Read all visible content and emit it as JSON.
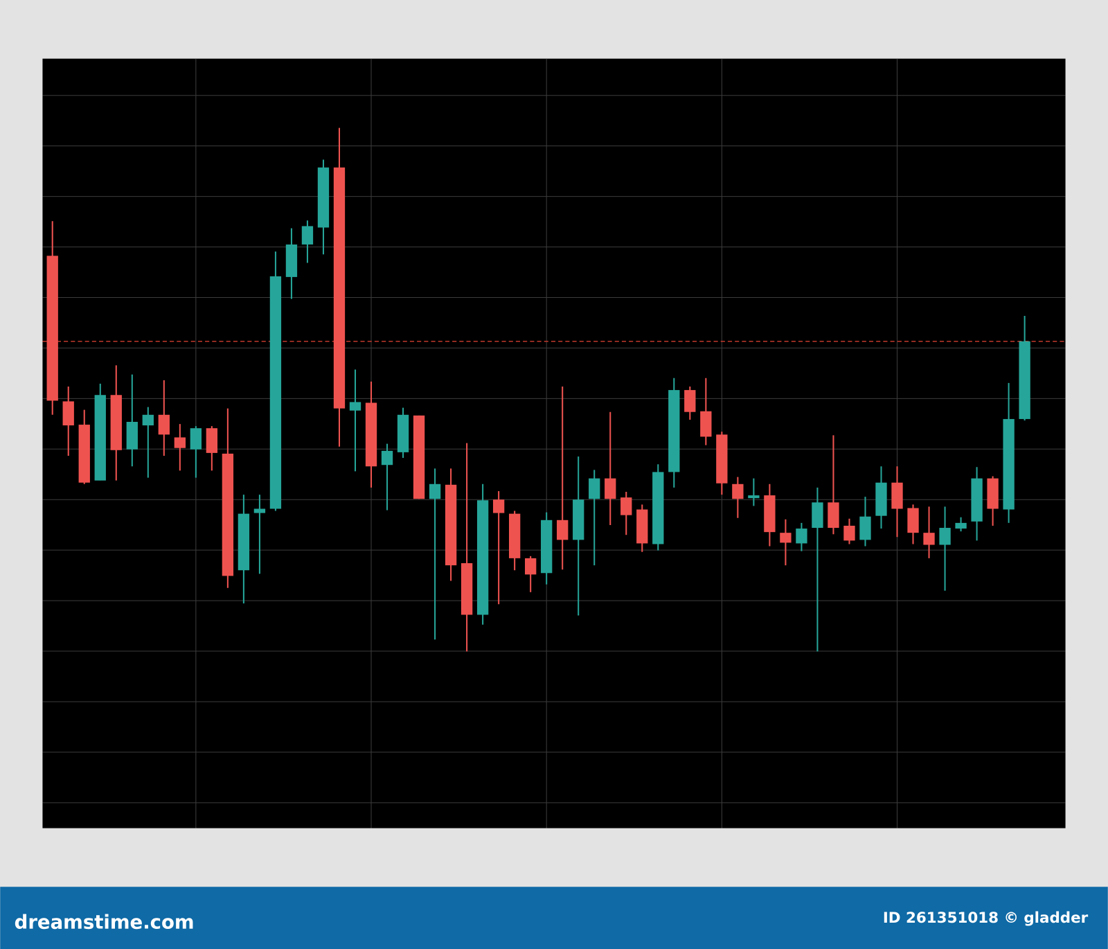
{
  "chart_data": {
    "type": "candlestick",
    "up_color": "#26a69a",
    "down_color": "#ef5350",
    "grid": true,
    "grid_color": "#3c3c3c",
    "background": "#000000",
    "reference_line": {
      "value": 653,
      "color": "#c0392b",
      "dashed": true
    },
    "xlim": [
      -0.62,
      63.56
    ],
    "xticks": [
      9,
      20,
      31,
      42,
      53
    ],
    "ylim": [
      -36,
      1053
    ],
    "yticks": [
      0,
      71.5,
      143,
      214.5,
      286,
      357.5,
      429,
      500.5,
      572,
      643.5,
      715,
      786.5,
      858,
      929.5,
      1001
    ],
    "open": [
      774,
      568,
      535,
      456,
      577,
      500,
      534,
      549,
      517,
      500,
      530,
      494,
      329,
      410,
      416,
      744,
      790,
      814,
      899,
      555,
      566,
      478,
      496,
      548,
      430,
      450,
      339,
      266,
      429,
      409,
      346,
      325,
      400,
      372,
      430,
      459,
      432,
      415,
      366,
      468,
      584,
      554,
      521,
      451,
      431,
      435,
      382,
      367,
      389,
      425,
      392,
      372,
      406,
      453,
      417,
      382,
      365,
      388,
      398,
      459,
      415,
      543
    ],
    "high": [
      823,
      589,
      556,
      593,
      619,
      606,
      560,
      598,
      536,
      533,
      533,
      558,
      436,
      436,
      780,
      813,
      824,
      910,
      955,
      613,
      596,
      508,
      559,
      548,
      473,
      473,
      509,
      451,
      441,
      413,
      349,
      411,
      589,
      490,
      471,
      553,
      440,
      422,
      479,
      601,
      589,
      601,
      525,
      461,
      459,
      451,
      401,
      396,
      446,
      520,
      402,
      433,
      476,
      476,
      422,
      419,
      419,
      404,
      475,
      462,
      594,
      689
    ],
    "low": [
      549,
      491,
      451,
      456,
      456,
      476,
      460,
      491,
      470,
      460,
      470,
      304,
      282,
      324,
      413,
      713,
      764,
      776,
      504,
      469,
      446,
      414,
      488,
      430,
      231,
      314,
      214,
      252,
      281,
      329,
      298,
      309,
      330,
      265,
      336,
      393,
      379,
      355,
      357,
      446,
      542,
      506,
      436,
      403,
      420,
      363,
      336,
      356,
      214,
      380,
      366,
      363,
      388,
      376,
      366,
      346,
      300,
      384,
      371,
      392,
      396,
      541
    ],
    "close": [
      569,
      534,
      453,
      577,
      499,
      539,
      549,
      521,
      502,
      530,
      495,
      321,
      409,
      416,
      745,
      790,
      816,
      899,
      558,
      567,
      476,
      498,
      549,
      430,
      451,
      336,
      266,
      428,
      410,
      346,
      323,
      400,
      372,
      429,
      459,
      430,
      407,
      367,
      468,
      584,
      553,
      518,
      452,
      430,
      435,
      383,
      368,
      388,
      425,
      389,
      371,
      405,
      453,
      416,
      382,
      365,
      389,
      396,
      459,
      416,
      543,
      653
    ]
  },
  "footer": {
    "brand": "dreamstime.com",
    "credit": "ID 261351018 © gladder",
    "color": "#0f6aa6"
  }
}
